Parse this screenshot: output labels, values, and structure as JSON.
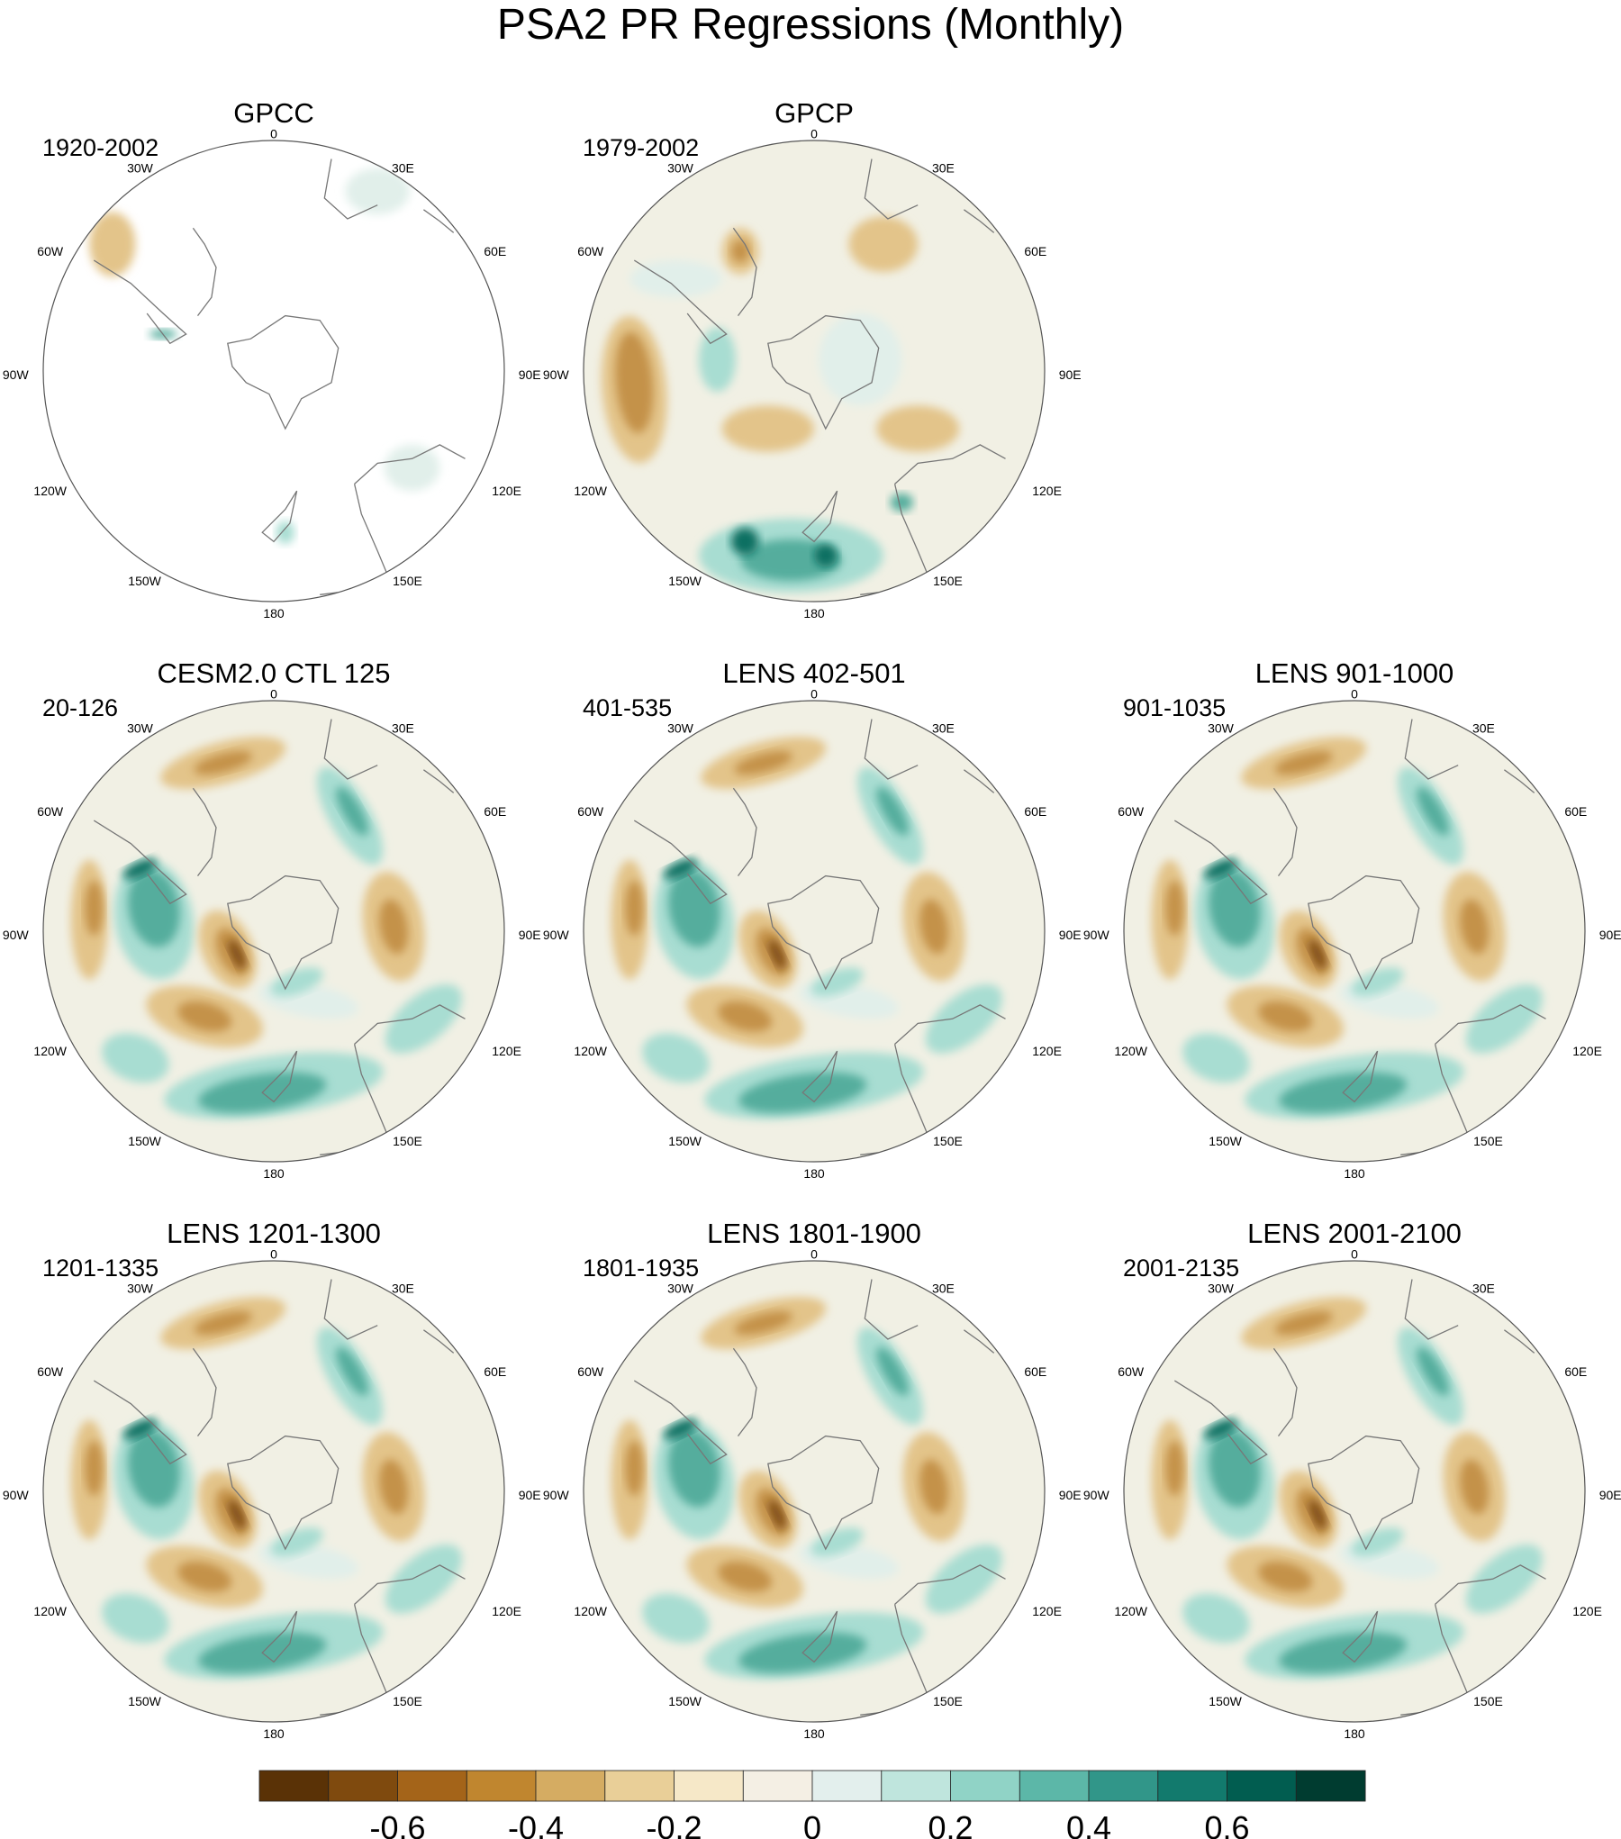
{
  "title": "PSA2 PR Regressions (Monthly)",
  "lon_labels": {
    "top": "0",
    "tr": "30E",
    "r1": "60E",
    "r2": "90E",
    "r3": "120E",
    "br": "150E",
    "bottom": "180",
    "bl": "150W",
    "l3": "120W",
    "l2": "90W",
    "l1": "60W",
    "tl": "30W"
  },
  "panels": [
    {
      "title": "GPCC",
      "period": "1920-2002",
      "coverage": "land-only"
    },
    {
      "title": "GPCP",
      "period": "1979-2002",
      "coverage": "full"
    },
    {
      "title": "CESM2.0 CTL 125",
      "period": "20-126",
      "coverage": "full"
    },
    {
      "title": "LENS 402-501",
      "period": "401-535",
      "coverage": "full"
    },
    {
      "title": "LENS 901-1000",
      "period": "901-1035",
      "coverage": "full"
    },
    {
      "title": "LENS 1201-1300",
      "period": "1201-1335",
      "coverage": "full"
    },
    {
      "title": "LENS 1801-1900",
      "period": "1801-1935",
      "coverage": "full"
    },
    {
      "title": "LENS 2001-2100",
      "period": "2001-2135",
      "coverage": "full"
    }
  ],
  "colorbar": {
    "colors": [
      "#5a3206",
      "#7f4a0e",
      "#a46419",
      "#c0862f",
      "#d5ac62",
      "#e9cf98",
      "#f6e8c8",
      "#f4efe4",
      "#e3efed",
      "#bfe5dd",
      "#90d3c6",
      "#5cb7a8",
      "#319689",
      "#127a6d",
      "#015d50",
      "#003c30"
    ],
    "tick_labels": [
      "-0.6",
      "-0.4",
      "-0.2",
      "0",
      "0.2",
      "0.4",
      "0.6"
    ]
  },
  "colors": {
    "ocean_bg": "#f1f0e4",
    "land_line": "#777777",
    "brown_mid": "#e3c48a",
    "brown_dark": "#c49249",
    "brown_deep": "#7e4c14",
    "green_mid": "#a8ddd2",
    "green_dark": "#54ad9d",
    "green_deep": "#0d6f62",
    "pale_green": "#e1efea"
  }
}
